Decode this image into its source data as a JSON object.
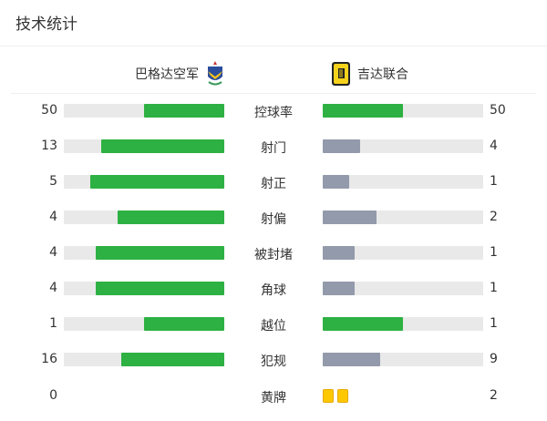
{
  "title": "技术统计",
  "home": {
    "name": "巴格达空军",
    "logo": "air-force-club-crest"
  },
  "away": {
    "name": "吉达联合",
    "logo": "al-ittihad-crest"
  },
  "colors": {
    "home_bar": "#2db142",
    "away_bar_leading": "#2db142",
    "away_bar": "#939aab",
    "track": "#e9e9e9",
    "yellow_card": "#fdc800"
  },
  "stats": [
    {
      "label": "控球率",
      "home": 50,
      "away": 50
    },
    {
      "label": "射门",
      "home": 13,
      "away": 4
    },
    {
      "label": "射正",
      "home": 5,
      "away": 1
    },
    {
      "label": "射偏",
      "home": 4,
      "away": 2
    },
    {
      "label": "被封堵",
      "home": 4,
      "away": 1
    },
    {
      "label": "角球",
      "home": 4,
      "away": 1
    },
    {
      "label": "越位",
      "home": 1,
      "away": 1
    },
    {
      "label": "犯规",
      "home": 16,
      "away": 9
    }
  ],
  "yellow_cards": {
    "label": "黄牌",
    "home": 0,
    "away": 2
  }
}
